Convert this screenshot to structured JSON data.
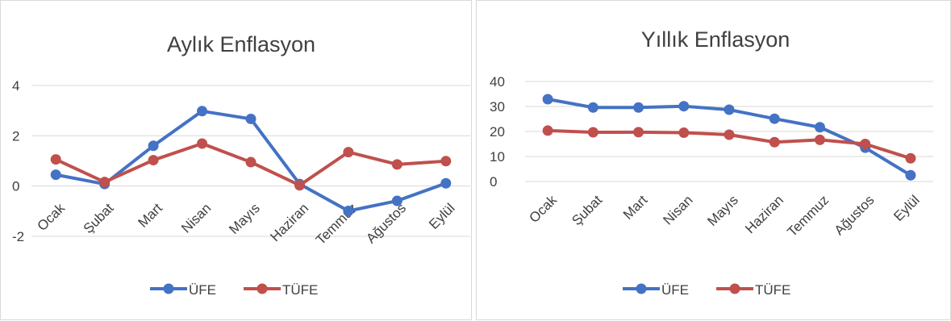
{
  "colors": {
    "ufe": "#4472C4",
    "tufe": "#C0504D",
    "grid": "#D9D9D9",
    "text": "#404040"
  },
  "chart_data": [
    {
      "type": "line",
      "title": "Aylık Enflasyon",
      "categories": [
        "Ocak",
        "Şubat",
        "Mart",
        "Nisan",
        "Mayıs",
        "Haziran",
        "Temmuz",
        "Ağustos",
        "Eylül"
      ],
      "series": [
        {
          "name": "ÜFE",
          "values": [
            0.45,
            0.08,
            1.6,
            2.98,
            2.67,
            0.08,
            -0.99,
            -0.59,
            0.11
          ]
        },
        {
          "name": "TÜFE",
          "values": [
            1.06,
            0.16,
            1.03,
            1.69,
            0.95,
            0.03,
            1.35,
            0.86,
            0.99
          ]
        }
      ],
      "yticks": [
        -2,
        0,
        2,
        4
      ],
      "ylim": [
        -2,
        4
      ],
      "grid": true,
      "legend": "bottom"
    },
    {
      "type": "line",
      "title": "Yıllık Enflasyon",
      "categories": [
        "Ocak",
        "Şubat",
        "Mart",
        "Nisan",
        "Mayıs",
        "Haziran",
        "Temmuz",
        "Ağustos",
        "Eylül"
      ],
      "series": [
        {
          "name": "ÜFE",
          "values": [
            32.9,
            29.6,
            29.6,
            30.1,
            28.7,
            25.1,
            21.7,
            13.5,
            2.5
          ]
        },
        {
          "name": "TÜFE",
          "values": [
            20.35,
            19.67,
            19.71,
            19.5,
            18.71,
            15.72,
            16.65,
            15.01,
            9.26
          ]
        }
      ],
      "yticks": [
        0,
        10,
        20,
        30,
        40
      ],
      "ylim": [
        0,
        40
      ],
      "grid": true,
      "legend": "bottom"
    }
  ]
}
